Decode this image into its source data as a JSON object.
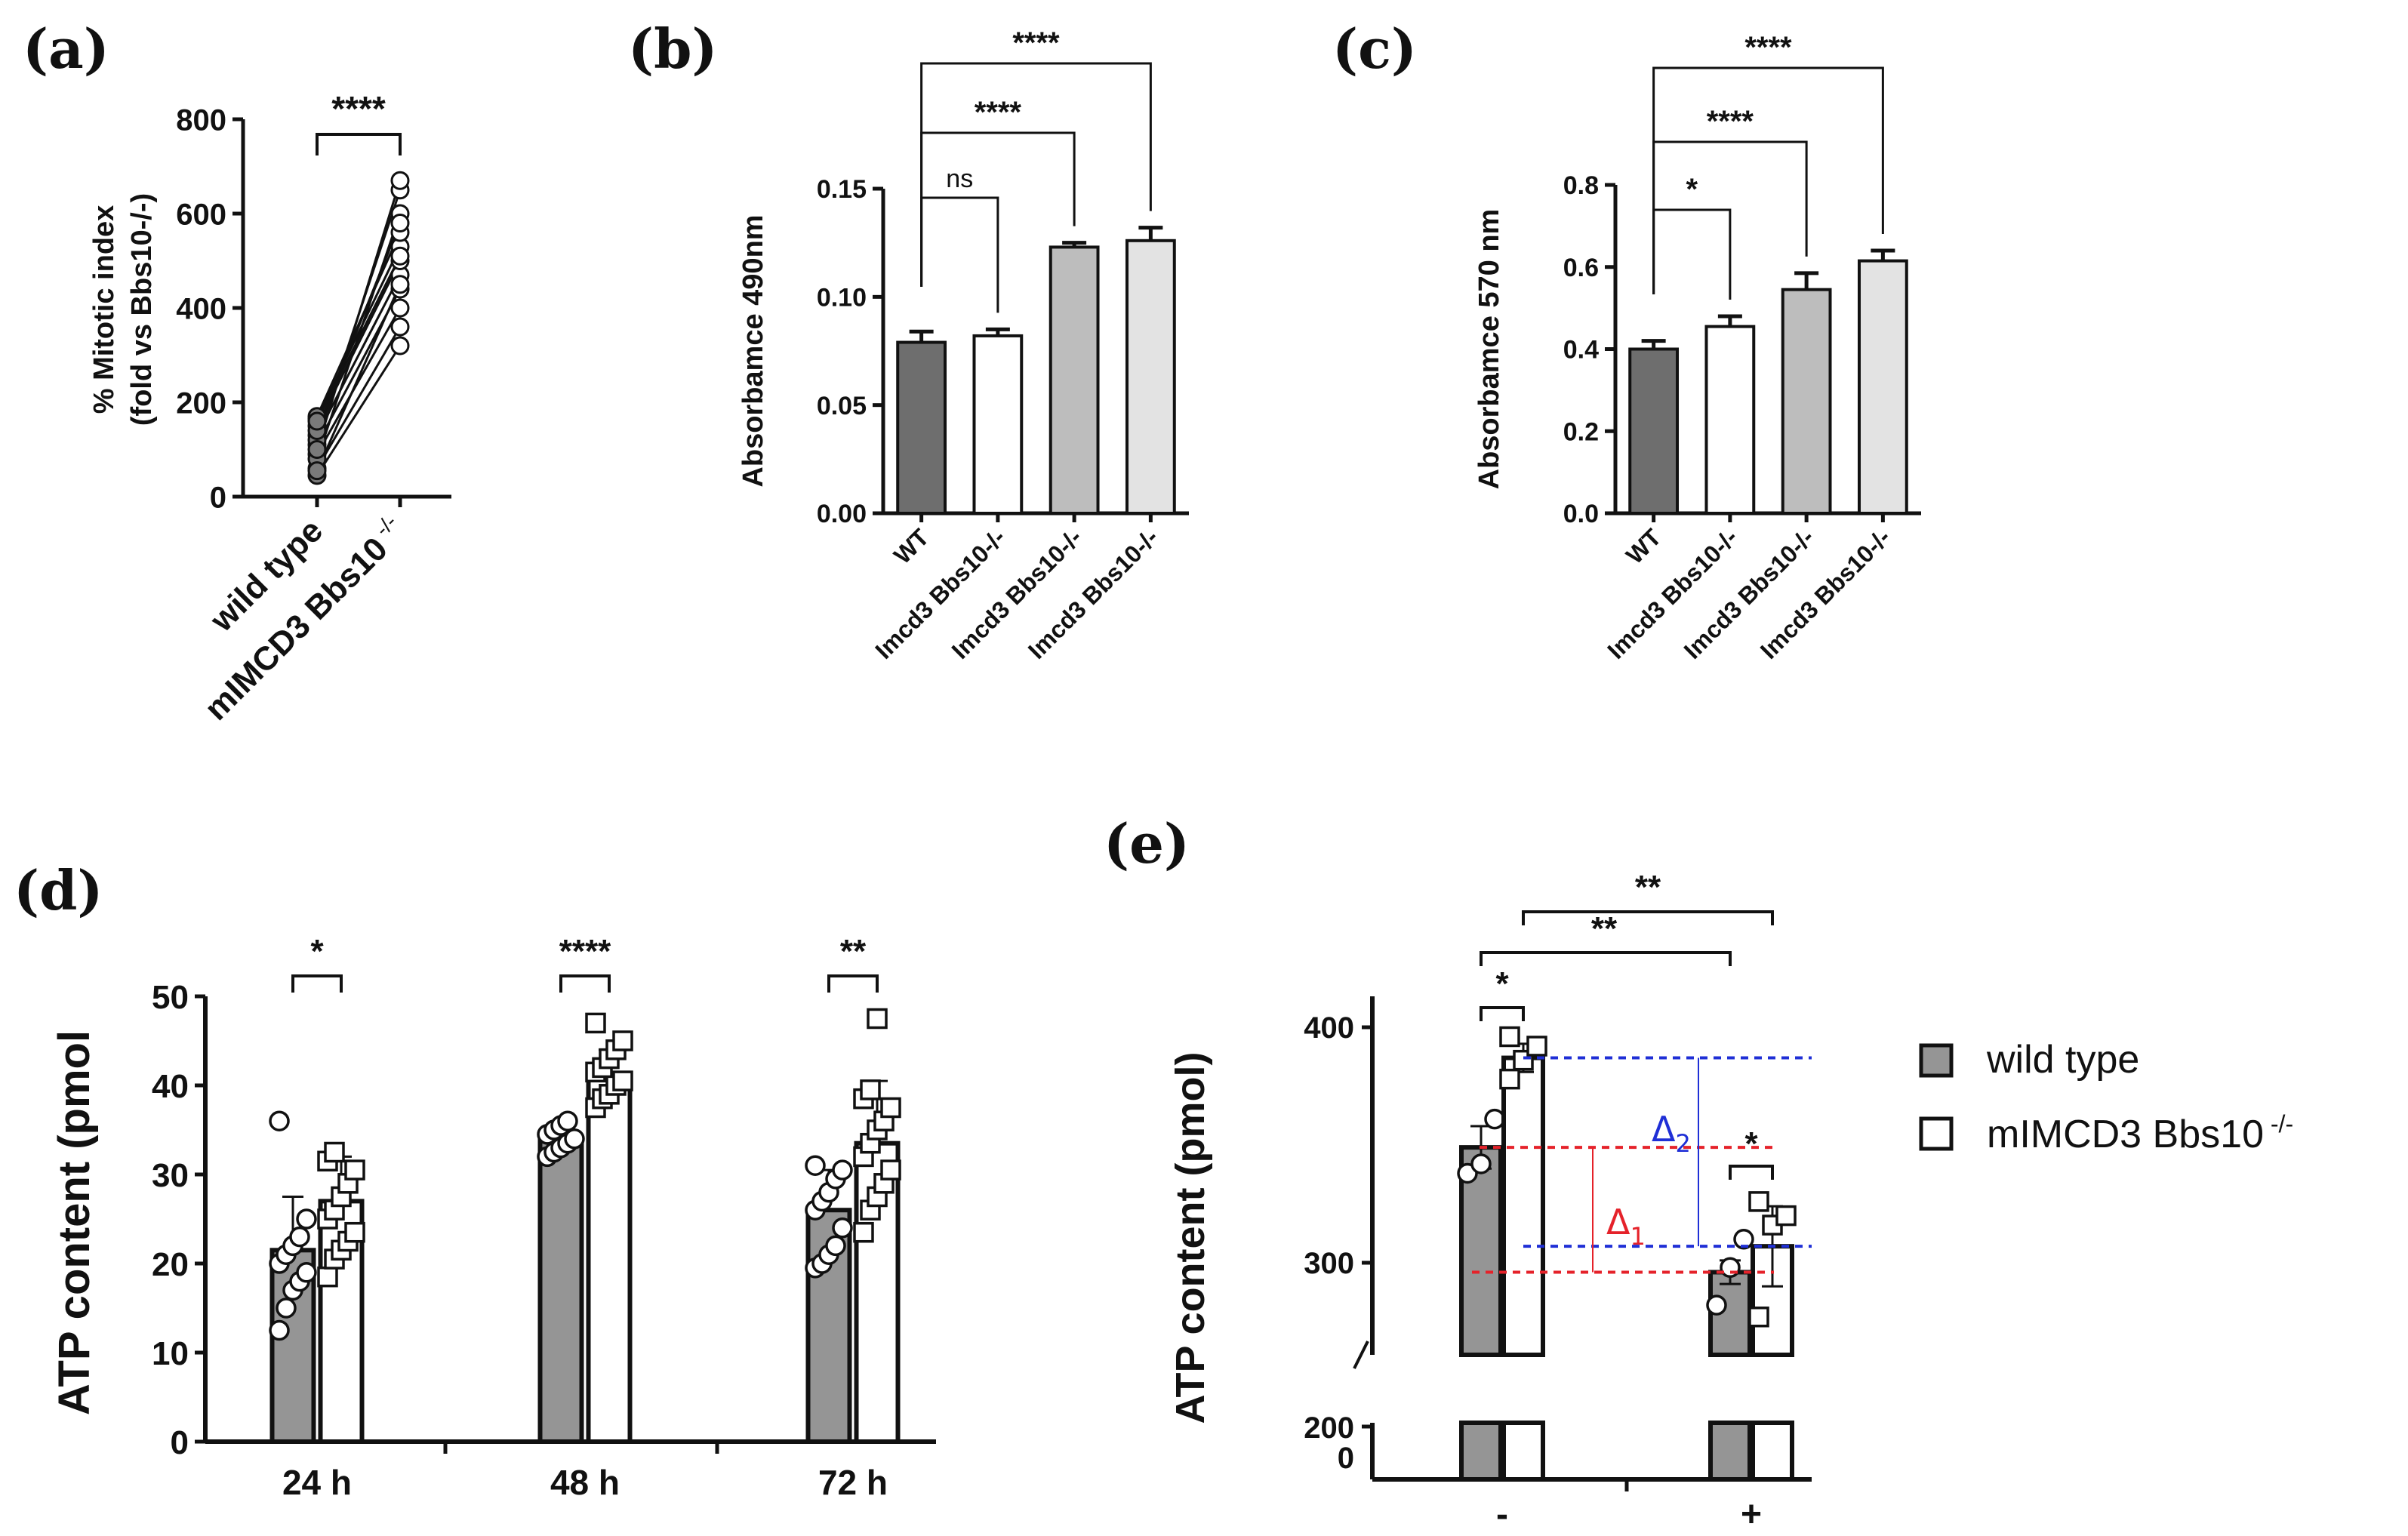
{
  "chart_data": [
    {
      "panel": "(a)",
      "type": "scatter",
      "ylabel_lines": [
        "% Mitotic index",
        "(fold vs Bbs10-/-)"
      ],
      "categories": [
        "wild type",
        "mIMCD3 Bbs10"
      ],
      "category_superscript": "-/-",
      "ylim": [
        0,
        800
      ],
      "yticks": [
        "0",
        "200",
        "400",
        "600",
        "800"
      ],
      "pairs": [
        [
          45,
          320
        ],
        [
          60,
          360
        ],
        [
          90,
          400
        ],
        [
          110,
          440
        ],
        [
          130,
          470
        ],
        [
          150,
          500
        ],
        [
          165,
          530
        ],
        [
          170,
          560
        ],
        [
          80,
          600
        ],
        [
          120,
          650
        ],
        [
          100,
          670
        ],
        [
          140,
          580
        ],
        [
          55,
          450
        ],
        [
          160,
          510
        ]
      ],
      "significance": [
        {
          "from": 0,
          "to": 1,
          "label": "****"
        }
      ]
    },
    {
      "panel": "(b)",
      "type": "bar",
      "ylabel": "Absorbamce 490nm",
      "categories": [
        "WT",
        "Imcd3 Bbs10-/-",
        "Imcd3 Bbs10-/-",
        "Imcd3 Bbs10-/-"
      ],
      "values": [
        0.079,
        0.082,
        0.123,
        0.126
      ],
      "errors": [
        0.005,
        0.003,
        0.002,
        0.006
      ],
      "fills": [
        "#6e6e6e",
        "#ffffff",
        "#bdbdbd",
        "#e3e3e3"
      ],
      "ylim": [
        0,
        0.15
      ],
      "yticks": [
        "0.00",
        "0.05",
        "0.10",
        "0.15"
      ],
      "significance": [
        {
          "from": 0,
          "to": 1,
          "label": "ns"
        },
        {
          "from": 0,
          "to": 2,
          "label": "****"
        },
        {
          "from": 0,
          "to": 3,
          "label": "****"
        }
      ]
    },
    {
      "panel": "(c)",
      "type": "bar",
      "ylabel": "Absorbamce 570 nm",
      "categories": [
        "WT",
        "Imcd3 Bbs10-/-",
        "Imcd3 Bbs10-/-",
        "Imcd3 Bbs10-/-"
      ],
      "values": [
        0.4,
        0.455,
        0.545,
        0.615
      ],
      "errors": [
        0.02,
        0.025,
        0.04,
        0.025
      ],
      "fills": [
        "#6e6e6e",
        "#ffffff",
        "#bdbdbd",
        "#e3e3e3"
      ],
      "ylim": [
        0,
        0.8
      ],
      "yticks": [
        "0.0",
        "0.2",
        "0.4",
        "0.6",
        "0.8"
      ],
      "significance": [
        {
          "from": 0,
          "to": 1,
          "label": "*"
        },
        {
          "from": 0,
          "to": 2,
          "label": "****"
        },
        {
          "from": 0,
          "to": 3,
          "label": "****"
        }
      ]
    },
    {
      "panel": "(d)",
      "type": "bar",
      "ylabel": "ATP  content (pmol",
      "categories": [
        "24 h",
        "48 h",
        "72 h"
      ],
      "series": [
        {
          "name": "wild type",
          "values": [
            21.5,
            34,
            26
          ],
          "errors": [
            6,
            1.5,
            4.5
          ],
          "points": [
            [
              12.5,
              15,
              17,
              18,
              19,
              20,
              21,
              22,
              23,
              25,
              36
            ],
            [
              32,
              32.5,
              33,
              33.5,
              34,
              34.5,
              35,
              35.5,
              36
            ],
            [
              19.5,
              20,
              21,
              22,
              24,
              26,
              27,
              28,
              29.5,
              30.5,
              31
            ]
          ]
        },
        {
          "name": "mIMCD3 Bbs10 -/-",
          "values": [
            27,
            41,
            33.5
          ],
          "errors": [
            5,
            3,
            7
          ],
          "points": [
            [
              18.5,
              20.5,
              21.5,
              22.5,
              23.5,
              25,
              26,
              27.5,
              29,
              30.5,
              31.5,
              32.5
            ],
            [
              37.5,
              38.5,
              39,
              40,
              40.5,
              41.5,
              42,
              43,
              44,
              45,
              47
            ],
            [
              23.5,
              26,
              27.5,
              29,
              30.5,
              32,
              33.5,
              35,
              36,
              37.5,
              38.5,
              39.5,
              47.5
            ]
          ]
        }
      ],
      "ylim": [
        0,
        50
      ],
      "yticks": [
        "0",
        "10",
        "20",
        "30",
        "40",
        "50"
      ],
      "significance": [
        "*",
        "****",
        "**"
      ]
    },
    {
      "panel": "(e)",
      "type": "bar",
      "ylabel": "ATP content (pmol)",
      "categories": [
        "-",
        "+"
      ],
      "series": [
        {
          "name": "wild type",
          "values": [
            349,
            296
          ],
          "errors": [
            9,
            5
          ],
          "points": [
            [
              338,
              342,
              361
            ],
            [
              282,
              298,
              310
            ]
          ]
        },
        {
          "name": "mIMCD3 Bbs10",
          "values": [
            387,
            307
          ],
          "errors": [
            6,
            17
          ],
          "points": [
            [
              378,
              386,
              392,
              396
            ],
            [
              277,
              316,
              320,
              326
            ]
          ]
        }
      ],
      "legend_superscript": "-/-",
      "yticks_upper": [
        "300",
        "400"
      ],
      "ylim_upper": [
        255,
        410
      ],
      "ytick_lower": "200",
      "ytick_zero": "0",
      "delta1_label": "Δ1",
      "delta2_label": "Δ2",
      "delta1_color": "#e5222a",
      "delta2_color": "#1f2fd6",
      "significance": [
        "*",
        "**",
        "**",
        "*"
      ]
    }
  ]
}
